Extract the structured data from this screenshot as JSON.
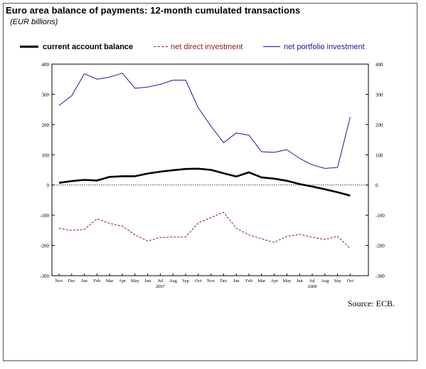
{
  "header": {
    "title": "Euro area balance of payments: 12-month cumulated transactions",
    "subtitle": "(EUR billions)"
  },
  "legend": {
    "items": [
      {
        "label": "current account balance",
        "color": "#000000",
        "style": "solid-thick"
      },
      {
        "label": "net direct investment",
        "color": "#8b1a1a",
        "style": "dashed"
      },
      {
        "label": "net portfolio investment",
        "color": "#1a1a9e",
        "style": "solid-thin"
      }
    ]
  },
  "source": "Source: ECB.",
  "chart_data": {
    "type": "line",
    "categories": [
      "Nov",
      "Dec",
      "Jan",
      "Feb",
      "Mar",
      "Apr",
      "May",
      "Jun",
      "Jul",
      "Aug",
      "Sep",
      "Oct",
      "Nov",
      "Dec",
      "Jan",
      "Feb",
      "Mar",
      "Apr",
      "May",
      "Jun",
      "Jul",
      "Aug",
      "Sep",
      "Oct"
    ],
    "year_labels": [
      {
        "label": "2007",
        "under_category_index": 8
      },
      {
        "label": "2008",
        "under_category_index": 20
      }
    ],
    "ylim": [
      -300,
      400
    ],
    "yticks": [
      400,
      300,
      200,
      100,
      0,
      -100,
      -200,
      -300
    ],
    "ytick_labels": [
      "400",
      "300",
      "200",
      "100",
      "0",
      "-100",
      "-200",
      "-300"
    ],
    "right_axis": true,
    "zero_line": "dotted",
    "grid": false,
    "legend_position": "top",
    "series": [
      {
        "name": "net portfolio investment",
        "color": "#1a1a9e",
        "values": [
          263,
          295,
          368,
          350,
          357,
          370,
          320,
          324,
          333,
          347,
          347,
          255,
          195,
          140,
          172,
          165,
          110,
          108,
          117,
          88,
          67,
          55,
          58,
          225
        ]
      },
      {
        "name": "current account balance",
        "color": "#000000",
        "values": [
          7,
          13,
          17,
          15,
          27,
          29,
          29,
          38,
          44,
          49,
          53,
          54,
          50,
          39,
          28,
          42,
          25,
          21,
          14,
          3,
          -5,
          -14,
          -24,
          -35
        ]
      },
      {
        "name": "net direct investment",
        "color": "#8b1a1a",
        "values": [
          -143,
          -150,
          -147,
          -112,
          -127,
          -136,
          -165,
          -185,
          -174,
          -172,
          -172,
          -125,
          -108,
          -90,
          -143,
          -165,
          -178,
          -190,
          -170,
          -163,
          -173,
          -180,
          -170,
          -210
        ]
      }
    ]
  }
}
